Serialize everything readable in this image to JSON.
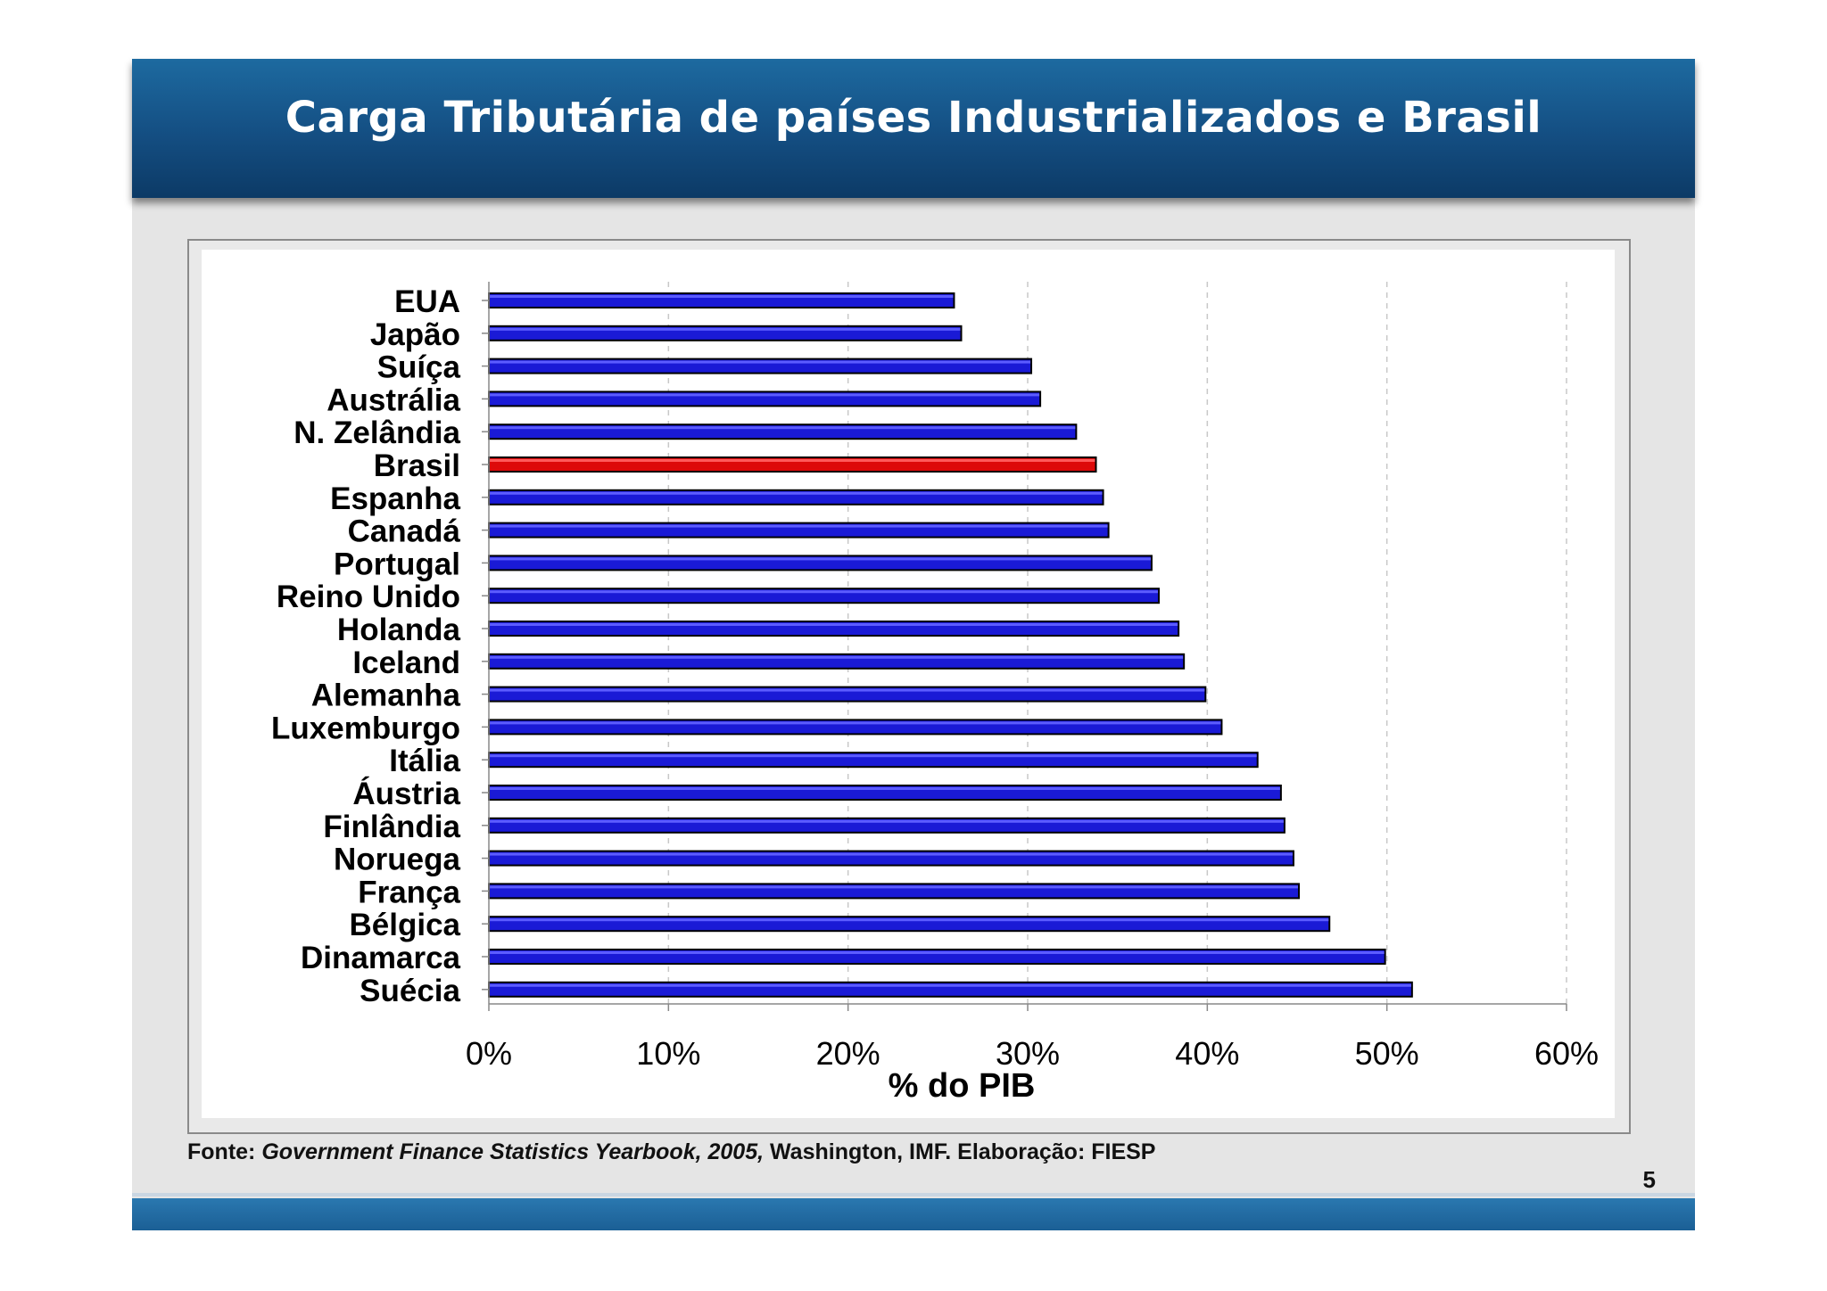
{
  "slide": {
    "title": "Carga Tributária de países Industrializados e Brasil",
    "page_number": "5",
    "source": {
      "label": "Fonte:",
      "publication": "Government Finance Statistics Yearbook, 2005,",
      "rest": "Washington, IMF.  Elaboração: FIESP"
    }
  },
  "colors": {
    "header": "#144e82",
    "bar_default": "#1a1ad6",
    "bar_highlight": "#dd0a0a",
    "bar_outline": "#000000"
  },
  "chart_data": {
    "type": "bar",
    "orientation": "horizontal",
    "title": "Carga Tributária de países Industrializados e Brasil",
    "xlabel": "% do PIB",
    "ylabel": "",
    "xlim": [
      0,
      60
    ],
    "xticks": [
      "0%",
      "10%",
      "20%",
      "30%",
      "40%",
      "50%",
      "60%"
    ],
    "grid": "vertical dashed",
    "highlight": "Brasil",
    "categories": [
      "EUA",
      "Japão",
      "Suíça",
      "Austrália",
      "N. Zelândia",
      "Brasil",
      "Espanha",
      "Canadá",
      "Portugal",
      "Reino Unido",
      "Holanda",
      "Iceland",
      "Alemanha",
      "Luxemburgo",
      "Itália",
      "Áustria",
      "Finlândia",
      "Noruega",
      "França",
      "Bélgica",
      "Dinamarca",
      "Suécia"
    ],
    "values": [
      25.9,
      26.3,
      30.2,
      30.7,
      32.7,
      33.8,
      34.2,
      34.5,
      36.9,
      37.3,
      38.4,
      38.7,
      39.9,
      40.8,
      42.8,
      44.1,
      44.3,
      44.8,
      45.1,
      46.8,
      49.9,
      51.4
    ]
  }
}
